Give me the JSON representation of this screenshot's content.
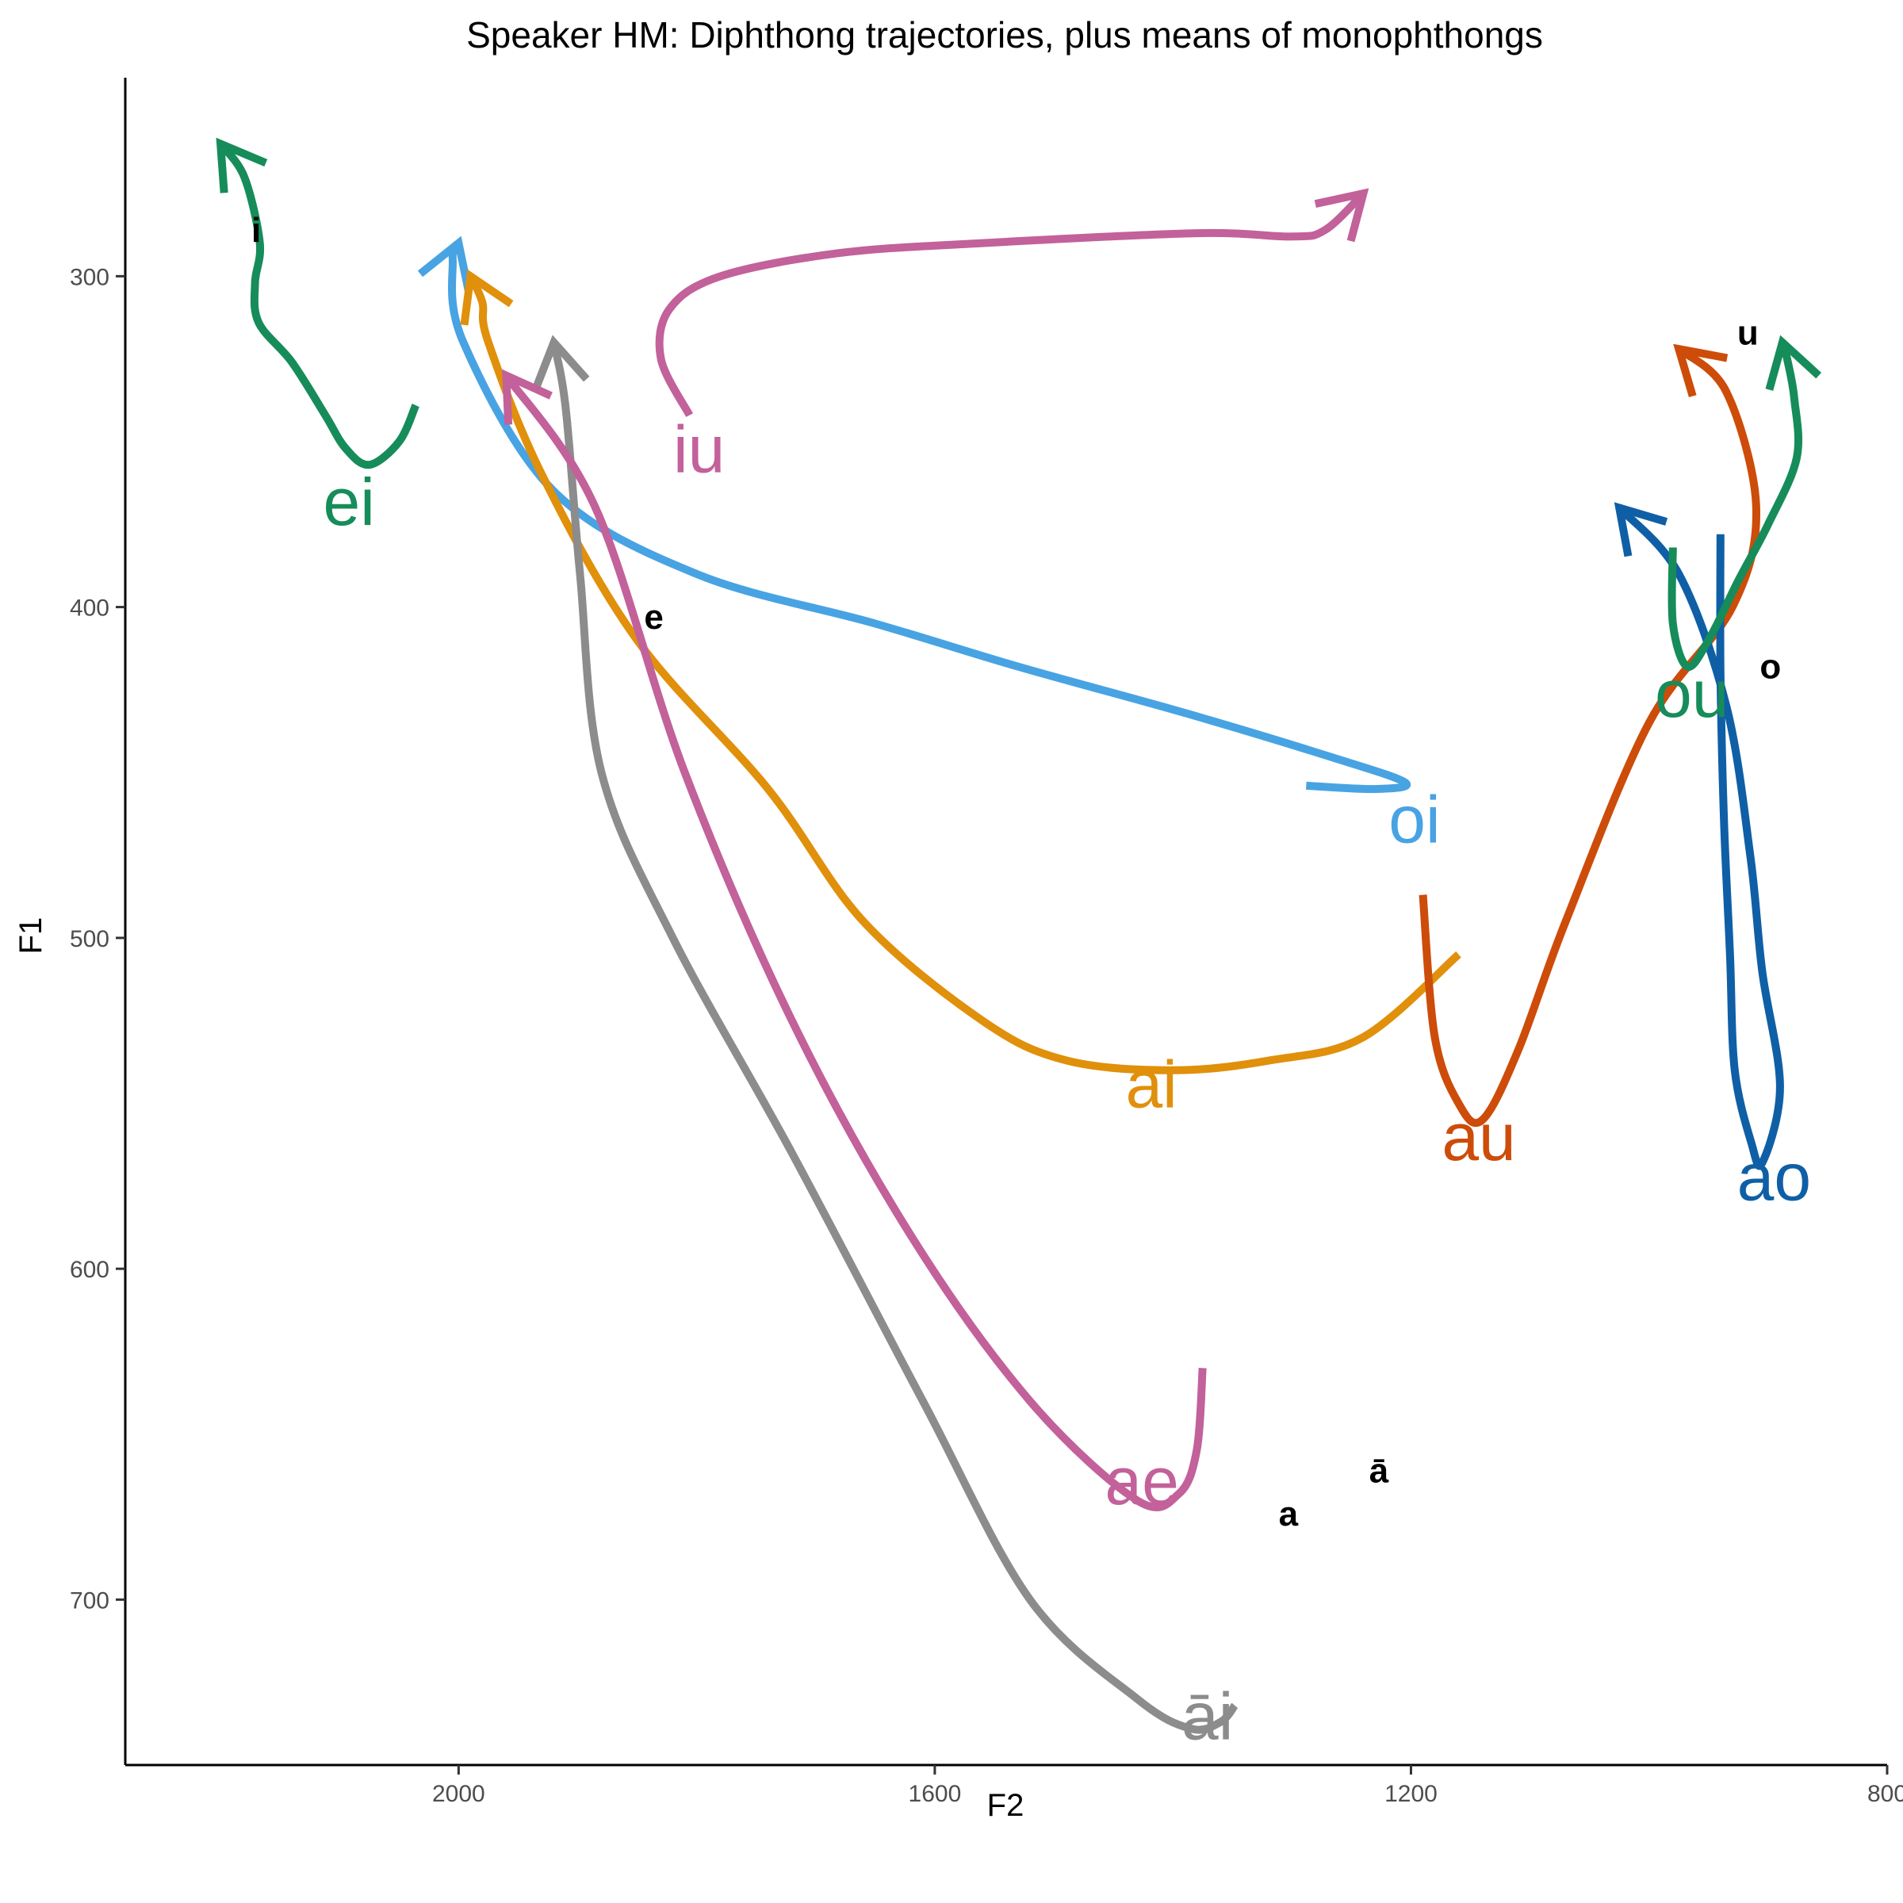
{
  "chart_data": {
    "type": "line",
    "title": "Speaker HM: Diphthong trajectories, plus means of monophthongs",
    "xlabel": "F2",
    "ylabel": "F1",
    "xlim": [
      2280,
      800
    ],
    "ylim": [
      750,
      240
    ],
    "x_reversed": true,
    "y_reversed": true,
    "grid": false,
    "x_ticks": [
      2000,
      1600,
      1200,
      800
    ],
    "y_ticks": [
      300,
      400,
      500,
      600,
      700
    ],
    "monophthongs": [
      {
        "label": "i",
        "f2": 2170,
        "f1": 286
      },
      {
        "label": "e",
        "f2": 1836,
        "f1": 403
      },
      {
        "label": "o",
        "f2": 898,
        "f1": 418
      },
      {
        "label": "u",
        "f2": 917,
        "f1": 317
      },
      {
        "label": "a",
        "f2": 1303,
        "f1": 674
      },
      {
        "label": "ā",
        "f2": 1227,
        "f1": 661
      }
    ],
    "series": [
      {
        "name": "ei",
        "color": "#168c5a",
        "label_pos": {
          "f2": 2092,
          "f1": 368
        },
        "points": [
          [
            2036,
            339
          ],
          [
            2050,
            350
          ],
          [
            2075,
            357
          ],
          [
            2095,
            352
          ],
          [
            2112,
            342
          ],
          [
            2140,
            326
          ],
          [
            2168,
            314
          ],
          [
            2171,
            302
          ],
          [
            2167,
            290
          ],
          [
            2180,
            270
          ],
          [
            2200,
            260
          ]
        ]
      },
      {
        "name": "iu",
        "color": "#c2619a",
        "label_pos": {
          "f2": 1798,
          "f1": 352
        },
        "points": [
          [
            1806,
            342
          ],
          [
            1830,
            325
          ],
          [
            1823,
            310
          ],
          [
            1780,
            300
          ],
          [
            1680,
            293
          ],
          [
            1560,
            290
          ],
          [
            1380,
            287
          ],
          [
            1300,
            288
          ],
          [
            1272,
            286
          ],
          [
            1240,
            275
          ]
        ]
      },
      {
        "name": "oi",
        "color": "#48a3e3",
        "label_pos": {
          "f2": 1197,
          "f1": 464
        },
        "points": [
          [
            1288,
            454
          ],
          [
            1230,
            455
          ],
          [
            1205,
            453
          ],
          [
            1270,
            445
          ],
          [
            1390,
            432
          ],
          [
            1530,
            418
          ],
          [
            1650,
            405
          ],
          [
            1800,
            390
          ],
          [
            1920,
            365
          ],
          [
            1996,
            320
          ],
          [
            2005,
            295
          ],
          [
            2000,
            290
          ]
        ]
      },
      {
        "name": "ai",
        "color": "#e0900b",
        "label_pos": {
          "f2": 1418,
          "f1": 544
        },
        "points": [
          [
            1160,
            505
          ],
          [
            1240,
            530
          ],
          [
            1318,
            537
          ],
          [
            1400,
            540
          ],
          [
            1490,
            537
          ],
          [
            1560,
            525
          ],
          [
            1660,
            495
          ],
          [
            1740,
            455
          ],
          [
            1850,
            410
          ],
          [
            1930,
            360
          ],
          [
            1975,
            320
          ],
          [
            1980,
            308
          ],
          [
            1990,
            300
          ]
        ]
      },
      {
        "name": "au",
        "color": "#cd4c0a",
        "label_pos": {
          "f2": 1143,
          "f1": 560
        },
        "points": [
          [
            1190,
            487
          ],
          [
            1180,
            530
          ],
          [
            1160,
            550
          ],
          [
            1140,
            555
          ],
          [
            1110,
            534
          ],
          [
            1070,
            495
          ],
          [
            1000,
            435
          ],
          [
            930,
            400
          ],
          [
            910,
            370
          ],
          [
            935,
            335
          ],
          [
            975,
            322
          ]
        ]
      },
      {
        "name": "ao",
        "color": "#0f5fa6",
        "label_pos": {
          "f2": 895,
          "f1": 572
        },
        "points": [
          [
            940,
            378
          ],
          [
            940,
            420
          ],
          [
            937,
            465
          ],
          [
            932,
            505
          ],
          [
            928,
            540
          ],
          [
            914,
            562
          ],
          [
            905,
            568
          ],
          [
            890,
            545
          ],
          [
            905,
            510
          ],
          [
            915,
            475
          ],
          [
            935,
            430
          ],
          [
            975,
            390
          ],
          [
            1025,
            370
          ]
        ]
      },
      {
        "name": "ou",
        "color": "#168c5a",
        "label_pos": {
          "f2": 964,
          "f1": 426
        },
        "points": [
          [
            980,
            382
          ],
          [
            980,
            405
          ],
          [
            968,
            418
          ],
          [
            950,
            410
          ],
          [
            925,
            392
          ],
          [
            900,
            375
          ],
          [
            876,
            355
          ],
          [
            878,
            337
          ],
          [
            884,
            325
          ],
          [
            888,
            320
          ]
        ]
      },
      {
        "name": "āi",
        "color": "#8c8c8c",
        "label_pos": {
          "f2": 1371,
          "f1": 735
        },
        "points": [
          [
            1348,
            732
          ],
          [
            1360,
            737
          ],
          [
            1385,
            739
          ],
          [
            1430,
            730
          ],
          [
            1520,
            700
          ],
          [
            1610,
            640
          ],
          [
            1720,
            565
          ],
          [
            1820,
            500
          ],
          [
            1880,
            450
          ],
          [
            1898,
            390
          ],
          [
            1910,
            340
          ],
          [
            1920,
            320
          ]
        ]
      },
      {
        "name": "ae",
        "color": "#c2619a",
        "label_pos": {
          "f2": 1426,
          "f1": 664
        },
        "points": [
          [
            1375,
            630
          ],
          [
            1380,
            655
          ],
          [
            1395,
            668
          ],
          [
            1430,
            670
          ],
          [
            1520,
            640
          ],
          [
            1620,
            590
          ],
          [
            1720,
            525
          ],
          [
            1810,
            450
          ],
          [
            1885,
            370
          ],
          [
            1960,
            330
          ]
        ]
      }
    ]
  }
}
